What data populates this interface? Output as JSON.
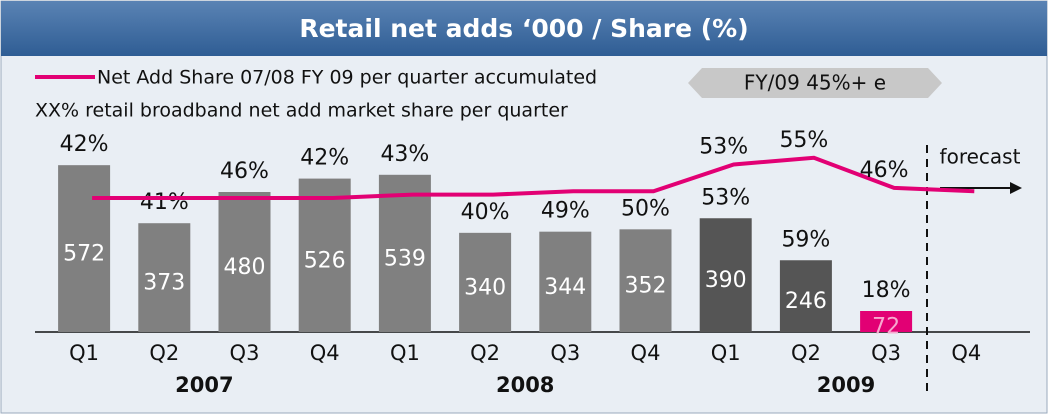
{
  "chart_data": {
    "type": "bar",
    "title": "Retail net adds ‘000 / Share (%)",
    "legend_line": "Net Add Share 07/08 FY 09 per quarter accumulated",
    "legend_text": "XX% retail broadband net add market share per quarter",
    "target": "FY/09 45%+ e",
    "forecast": "forecast",
    "categories": [
      "Q1",
      "Q2",
      "Q3",
      "Q4",
      "Q1",
      "Q2",
      "Q3",
      "Q4",
      "Q1",
      "Q2",
      "Q3",
      "Q4"
    ],
    "years": [
      "2007",
      "2008",
      "2009"
    ],
    "ylim": [
      0,
      600
    ],
    "y2lim": [
      40,
      60
    ],
    "series": [
      {
        "name": "Retail net adds",
        "colors": [
          "#808080",
          "#808080",
          "#808080",
          "#808080",
          "#808080",
          "#808080",
          "#808080",
          "#808080",
          "#555555",
          "#555555",
          "#e20074",
          null
        ],
        "values": [
          572,
          373,
          480,
          526,
          539,
          340,
          344,
          352,
          390,
          246,
          72,
          null
        ]
      },
      {
        "name": "Share",
        "values": [
          42,
          41,
          46,
          42,
          43,
          40,
          49,
          50,
          53,
          59,
          18,
          null
        ],
        "value_labels": [
          "42%",
          "41%",
          "46%",
          "42%",
          "43%",
          "40%",
          "49%",
          "50%",
          "53%",
          "59%",
          "18%",
          null
        ]
      },
      {
        "name": "Net Add Share 07/08 FY 09 per quarter accumulated",
        "color": "#e20074",
        "axis": "y2",
        "values": [
          43,
          43,
          43,
          43,
          44,
          44,
          45,
          45,
          53,
          55,
          46,
          45
        ],
        "value_labels": [
          null,
          null,
          null,
          null,
          null,
          null,
          null,
          null,
          "53%",
          "55%",
          "46%",
          null
        ]
      }
    ]
  }
}
